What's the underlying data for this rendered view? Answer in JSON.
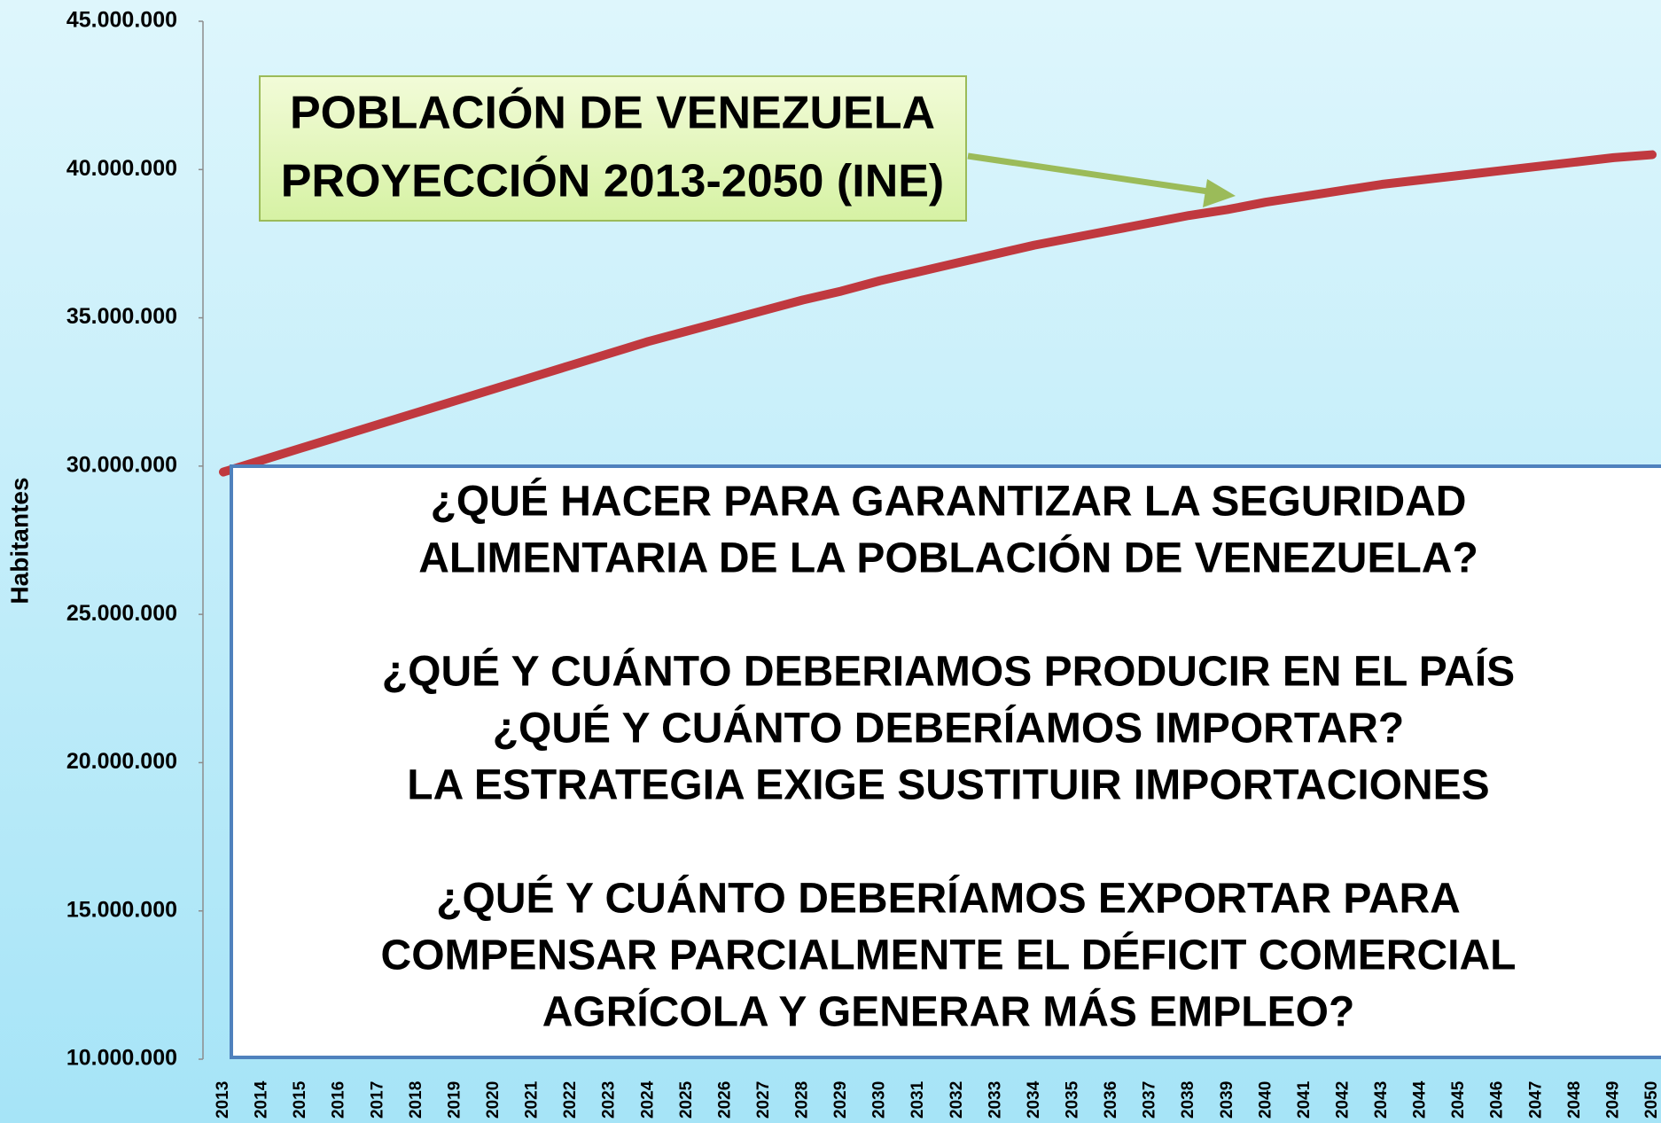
{
  "chart_data": {
    "type": "line",
    "title": [
      "POBLACIÓN DE VENEZUELA",
      "PROYECCIÓN 2013-2050 (INE)"
    ],
    "ylabel": "Habitantes",
    "annotations": [
      "¿QUÉ HACER PARA GARANTIZAR LA SEGURIDAD",
      "ALIMENTARIA DE LA POBLACIÓN DE VENEZUELA?",
      "¿QUÉ Y CUÁNTO DEBERIAMOS PRODUCIR EN EL PAÍS",
      "¿QUÉ Y CUÁNTO DEBERÍAMOS IMPORTAR?",
      "LA ESTRATEGIA EXIGE SUSTITUIR IMPORTACIONES",
      "¿QUÉ Y CUÁNTO DEBERÍAMOS EXPORTAR PARA",
      "COMPENSAR PARCIALMENTE EL DÉFICIT COMERCIAL",
      "AGRÍCOLA Y GENERAR MÁS EMPLEO?"
    ],
    "categories": [
      "2013",
      "2014",
      "2015",
      "2016",
      "2017",
      "2018",
      "2019",
      "2020",
      "2021",
      "2022",
      "2023",
      "2024",
      "2025",
      "2026",
      "2027",
      "2028",
      "2029",
      "2030",
      "2031",
      "2032",
      "2033",
      "2034",
      "2035",
      "2036",
      "2037",
      "2038",
      "2039",
      "2040",
      "2041",
      "2042",
      "2043",
      "2044",
      "2045",
      "2046",
      "2047",
      "2048",
      "2049",
      "2050"
    ],
    "series": [
      {
        "name": "Población",
        "color": "#c0393f",
        "values": [
          29800000,
          30200000,
          30600000,
          31000000,
          31400000,
          31800000,
          32200000,
          32600000,
          33000000,
          33400000,
          33800000,
          34200000,
          34550000,
          34900000,
          35250000,
          35600000,
          35900000,
          36250000,
          36550000,
          36850000,
          37150000,
          37450000,
          37700000,
          37950000,
          38200000,
          38450000,
          38650000,
          38900000,
          39100000,
          39300000,
          39500000,
          39650000,
          39800000,
          39950000,
          40100000,
          40250000,
          40400000,
          40500000
        ]
      }
    ],
    "ylim": [
      10000000,
      45000000
    ],
    "yticks": [
      {
        "value": 10000000,
        "label": "10.000.000"
      },
      {
        "value": 15000000,
        "label": "15.000.000"
      },
      {
        "value": 20000000,
        "label": "20.000.000"
      },
      {
        "value": 25000000,
        "label": "25.000.000"
      },
      {
        "value": 30000000,
        "label": "30.000.000"
      },
      {
        "value": 35000000,
        "label": "35.000.000"
      },
      {
        "value": 40000000,
        "label": "40.000.000"
      },
      {
        "value": 45000000,
        "label": "45.000.000"
      }
    ],
    "grid": false
  }
}
